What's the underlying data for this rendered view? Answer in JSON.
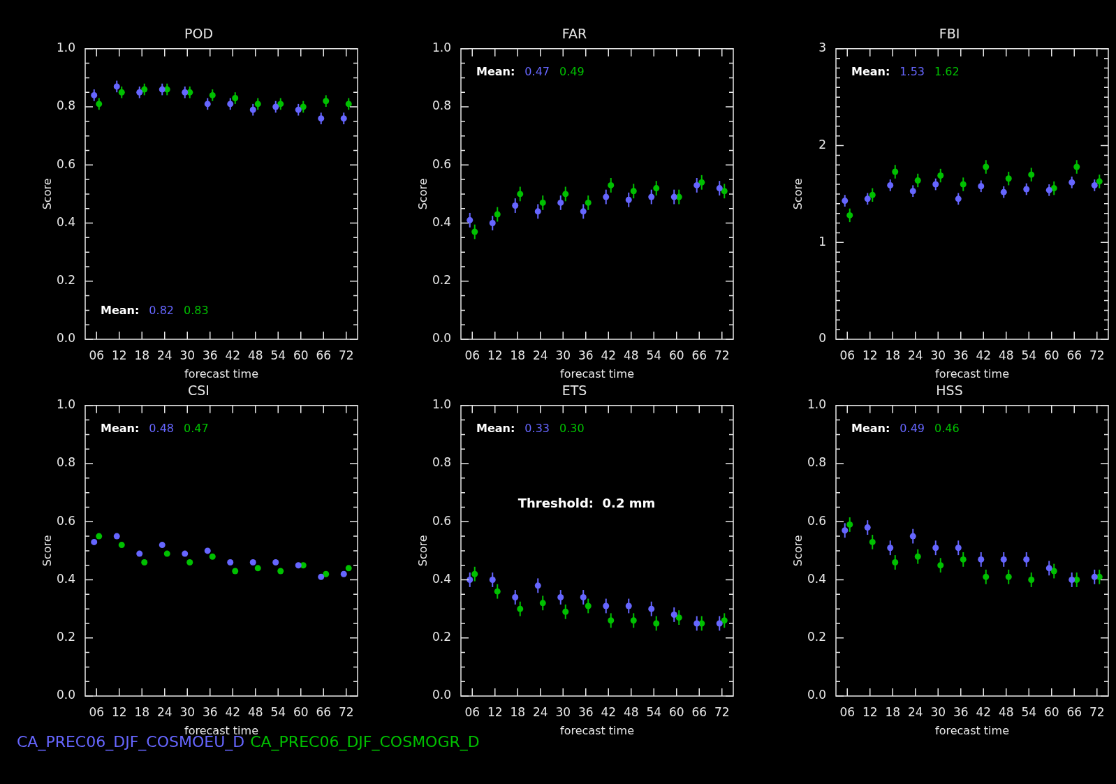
{
  "chart_data": [
    {
      "type": "scatter",
      "title": "POD",
      "xlabel": "forecast time",
      "ylabel": "Score",
      "marker": "circle",
      "categories": [
        "06",
        "12",
        "18",
        "24",
        "30",
        "36",
        "42",
        "48",
        "54",
        "60",
        "66",
        "72"
      ],
      "series": [
        {
          "color": "#6666ff",
          "values": [
            0.84,
            0.87,
            0.85,
            0.86,
            0.85,
            0.81,
            0.81,
            0.79,
            0.8,
            0.79,
            0.76,
            0.76
          ],
          "errors": [
            0.02,
            0.02,
            0.02,
            0.02,
            0.02,
            0.02,
            0.02,
            0.02,
            0.02,
            0.02,
            0.02,
            0.02
          ]
        },
        {
          "color": "#00c000",
          "values": [
            0.81,
            0.85,
            0.86,
            0.86,
            0.85,
            0.84,
            0.83,
            0.81,
            0.81,
            0.8,
            0.82,
            0.81
          ],
          "errors": [
            0.02,
            0.02,
            0.02,
            0.02,
            0.02,
            0.02,
            0.02,
            0.02,
            0.02,
            0.02,
            0.02,
            0.02
          ]
        }
      ],
      "ylim": [
        0,
        1
      ],
      "yticks": [
        {
          "value": 0,
          "label": "0.0"
        },
        {
          "value": 0.05,
          "label": null
        },
        {
          "value": 0.1,
          "label": null
        },
        {
          "value": 0.15,
          "label": null
        },
        0.2,
        {
          "value": 0.25,
          "label": null
        },
        {
          "value": 0.3,
          "label": null
        },
        {
          "value": 0.35,
          "label": null
        },
        0.4,
        {
          "value": 0.45,
          "label": null
        },
        {
          "value": 0.5,
          "label": null
        },
        {
          "value": 0.55,
          "label": null
        },
        0.6,
        {
          "value": 0.65,
          "label": null
        },
        {
          "value": 0.7,
          "label": null
        },
        {
          "value": 0.75,
          "label": null
        },
        0.8,
        {
          "value": 0.85,
          "label": null
        },
        {
          "value": 0.9,
          "label": null
        },
        {
          "value": 0.95,
          "label": null
        },
        {
          "value": 1,
          "label": "1.0"
        }
      ],
      "annotations": [
        "Mean:",
        "0.82",
        "0.83"
      ]
    },
    {
      "type": "scatter",
      "title": "FAR",
      "xlabel": "forecast time",
      "ylabel": "Score",
      "marker": "circle",
      "categories": [
        "06",
        "12",
        "18",
        "24",
        "30",
        "36",
        "42",
        "48",
        "54",
        "60",
        "66",
        "72"
      ],
      "series": [
        {
          "color": "#6666ff",
          "values": [
            0.41,
            0.4,
            0.46,
            0.44,
            0.47,
            0.44,
            0.49,
            0.48,
            0.49,
            0.49,
            0.53,
            0.52
          ],
          "errors": [
            0.025,
            0.025,
            0.025,
            0.025,
            0.025,
            0.025,
            0.025,
            0.025,
            0.025,
            0.025,
            0.025,
            0.025
          ]
        },
        {
          "color": "#00c000",
          "values": [
            0.37,
            0.43,
            0.5,
            0.47,
            0.5,
            0.47,
            0.53,
            0.51,
            0.52,
            0.49,
            0.54,
            0.51
          ],
          "errors": [
            0.025,
            0.025,
            0.025,
            0.025,
            0.025,
            0.025,
            0.025,
            0.025,
            0.025,
            0.025,
            0.025,
            0.025
          ]
        }
      ],
      "ylim": [
        0,
        1
      ],
      "yticks": [
        {
          "value": 0,
          "label": "0.0"
        },
        {
          "value": 0.05,
          "label": null
        },
        {
          "value": 0.1,
          "label": null
        },
        {
          "value": 0.15,
          "label": null
        },
        0.2,
        {
          "value": 0.25,
          "label": null
        },
        {
          "value": 0.3,
          "label": null
        },
        {
          "value": 0.35,
          "label": null
        },
        0.4,
        {
          "value": 0.45,
          "label": null
        },
        {
          "value": 0.5,
          "label": null
        },
        {
          "value": 0.55,
          "label": null
        },
        0.6,
        {
          "value": 0.65,
          "label": null
        },
        {
          "value": 0.7,
          "label": null
        },
        {
          "value": 0.75,
          "label": null
        },
        0.8,
        {
          "value": 0.85,
          "label": null
        },
        {
          "value": 0.9,
          "label": null
        },
        {
          "value": 0.95,
          "label": null
        },
        {
          "value": 1,
          "label": "1.0"
        }
      ],
      "annotations": [
        "Mean:",
        "0.47",
        "0.49"
      ]
    },
    {
      "type": "scatter",
      "title": "FBI",
      "xlabel": "forecast time",
      "ylabel": "Score",
      "marker": "circle",
      "categories": [
        "06",
        "12",
        "18",
        "24",
        "30",
        "36",
        "42",
        "48",
        "54",
        "60",
        "66",
        "72"
      ],
      "series": [
        {
          "color": "#6666ff",
          "values": [
            1.43,
            1.45,
            1.59,
            1.53,
            1.6,
            1.45,
            1.58,
            1.52,
            1.55,
            1.54,
            1.62,
            1.59
          ],
          "errors": [
            0.06,
            0.06,
            0.06,
            0.06,
            0.06,
            0.06,
            0.06,
            0.06,
            0.06,
            0.06,
            0.06,
            0.06
          ]
        },
        {
          "color": "#00c000",
          "values": [
            1.28,
            1.49,
            1.73,
            1.64,
            1.69,
            1.6,
            1.78,
            1.66,
            1.7,
            1.56,
            1.78,
            1.63
          ],
          "errors": [
            0.07,
            0.07,
            0.07,
            0.07,
            0.07,
            0.07,
            0.07,
            0.07,
            0.07,
            0.07,
            0.07,
            0.07
          ]
        }
      ],
      "ylim": [
        0,
        3
      ],
      "yticks": [
        0,
        {
          "value": 0.1,
          "label": null
        },
        {
          "value": 0.2,
          "label": null
        },
        {
          "value": 0.3,
          "label": null
        },
        {
          "value": 0.4,
          "label": null
        },
        {
          "value": 0.5,
          "label": null
        },
        {
          "value": 0.6,
          "label": null
        },
        {
          "value": 0.7,
          "label": null
        },
        {
          "value": 0.8,
          "label": null
        },
        {
          "value": 0.9,
          "label": null
        },
        1,
        {
          "value": 1.1,
          "label": null
        },
        {
          "value": 1.2,
          "label": null
        },
        {
          "value": 1.3,
          "label": null
        },
        {
          "value": 1.4,
          "label": null
        },
        {
          "value": 1.5,
          "label": null
        },
        {
          "value": 1.6,
          "label": null
        },
        {
          "value": 1.7,
          "label": null
        },
        {
          "value": 1.8,
          "label": null
        },
        {
          "value": 1.9,
          "label": null
        },
        2,
        {
          "value": 2.1,
          "label": null
        },
        {
          "value": 2.2,
          "label": null
        },
        {
          "value": 2.3,
          "label": null
        },
        {
          "value": 2.4,
          "label": null
        },
        {
          "value": 2.5,
          "label": null
        },
        {
          "value": 2.6,
          "label": null
        },
        {
          "value": 2.7,
          "label": null
        },
        {
          "value": 2.8,
          "label": null
        },
        {
          "value": 2.9,
          "label": null
        },
        3
      ],
      "annotations": [
        "Mean:",
        "1.53",
        "1.62"
      ]
    },
    {
      "type": "scatter",
      "title": "CSI",
      "xlabel": "forecast time",
      "ylabel": "Score",
      "marker": "circle",
      "legend": "bottom",
      "categories": [
        "06",
        "12",
        "18",
        "24",
        "30",
        "36",
        "42",
        "48",
        "54",
        "60",
        "66",
        "72"
      ],
      "series": [
        {
          "name": "CA_PREC06_DJF_COSMOEU_D",
          "color": "#6666ff",
          "values": [
            0.53,
            0.55,
            0.49,
            0.52,
            0.49,
            0.5,
            0.46,
            0.46,
            0.46,
            0.45,
            0.41,
            0.42
          ]
        },
        {
          "name": "CA_PREC06_DJF_COSMOGR_D",
          "color": "#00c000",
          "values": [
            0.55,
            0.52,
            0.46,
            0.49,
            0.46,
            0.48,
            0.43,
            0.44,
            0.43,
            0.45,
            0.42,
            0.44
          ]
        }
      ],
      "ylim": [
        0,
        1
      ],
      "yticks": [
        {
          "value": 0,
          "label": "0.0"
        },
        {
          "value": 0.05,
          "label": null
        },
        {
          "value": 0.1,
          "label": null
        },
        {
          "value": 0.15,
          "label": null
        },
        0.2,
        {
          "value": 0.25,
          "label": null
        },
        {
          "value": 0.3,
          "label": null
        },
        {
          "value": 0.35,
          "label": null
        },
        0.4,
        {
          "value": 0.45,
          "label": null
        },
        {
          "value": 0.5,
          "label": null
        },
        {
          "value": 0.55,
          "label": null
        },
        0.6,
        {
          "value": 0.65,
          "label": null
        },
        {
          "value": 0.7,
          "label": null
        },
        {
          "value": 0.75,
          "label": null
        },
        0.8,
        {
          "value": 0.85,
          "label": null
        },
        {
          "value": 0.9,
          "label": null
        },
        {
          "value": 0.95,
          "label": null
        },
        {
          "value": 1,
          "label": "1.0"
        }
      ],
      "annotations": [
        "Mean:",
        "0.48",
        "0.47"
      ]
    },
    {
      "type": "scatter",
      "title": "ETS",
      "xlabel": "forecast time",
      "ylabel": "Score",
      "marker": "circle",
      "categories": [
        "06",
        "12",
        "18",
        "24",
        "30",
        "36",
        "42",
        "48",
        "54",
        "60",
        "66",
        "72"
      ],
      "series": [
        {
          "color": "#6666ff",
          "values": [
            0.4,
            0.4,
            0.34,
            0.38,
            0.34,
            0.34,
            0.31,
            0.31,
            0.3,
            0.28,
            0.25,
            0.25
          ],
          "errors": [
            0.025,
            0.025,
            0.025,
            0.025,
            0.025,
            0.025,
            0.025,
            0.025,
            0.025,
            0.025,
            0.025,
            0.025
          ]
        },
        {
          "color": "#00c000",
          "values": [
            0.42,
            0.36,
            0.3,
            0.32,
            0.29,
            0.31,
            0.26,
            0.26,
            0.25,
            0.27,
            0.25,
            0.26
          ],
          "errors": [
            0.025,
            0.025,
            0.025,
            0.025,
            0.025,
            0.025,
            0.025,
            0.025,
            0.025,
            0.025,
            0.025,
            0.025
          ]
        }
      ],
      "ylim": [
        0,
        1
      ],
      "yticks": [
        {
          "value": 0,
          "label": "0.0"
        },
        {
          "value": 0.05,
          "label": null
        },
        {
          "value": 0.1,
          "label": null
        },
        {
          "value": 0.15,
          "label": null
        },
        0.2,
        {
          "value": 0.25,
          "label": null
        },
        {
          "value": 0.3,
          "label": null
        },
        {
          "value": 0.35,
          "label": null
        },
        0.4,
        {
          "value": 0.45,
          "label": null
        },
        {
          "value": 0.5,
          "label": null
        },
        {
          "value": 0.55,
          "label": null
        },
        0.6,
        {
          "value": 0.65,
          "label": null
        },
        {
          "value": 0.7,
          "label": null
        },
        {
          "value": 0.75,
          "label": null
        },
        0.8,
        {
          "value": 0.85,
          "label": null
        },
        {
          "value": 0.9,
          "label": null
        },
        {
          "value": 0.95,
          "label": null
        },
        {
          "value": 1,
          "label": "1.0"
        }
      ],
      "annotations": [
        "Mean:",
        "0.33",
        "0.30",
        "Threshold:  0.2 mm"
      ]
    },
    {
      "type": "scatter",
      "title": "HSS",
      "xlabel": "forecast time",
      "ylabel": "Score",
      "marker": "circle",
      "categories": [
        "06",
        "12",
        "18",
        "24",
        "30",
        "36",
        "42",
        "48",
        "54",
        "60",
        "66",
        "72"
      ],
      "series": [
        {
          "color": "#6666ff",
          "values": [
            0.57,
            0.58,
            0.51,
            0.55,
            0.51,
            0.51,
            0.47,
            0.47,
            0.47,
            0.44,
            0.4,
            0.41
          ],
          "errors": [
            0.025,
            0.025,
            0.025,
            0.025,
            0.025,
            0.025,
            0.025,
            0.025,
            0.025,
            0.025,
            0.025,
            0.025
          ]
        },
        {
          "color": "#00c000",
          "values": [
            0.59,
            0.53,
            0.46,
            0.48,
            0.45,
            0.47,
            0.41,
            0.41,
            0.4,
            0.43,
            0.4,
            0.41
          ],
          "errors": [
            0.025,
            0.025,
            0.025,
            0.025,
            0.025,
            0.025,
            0.025,
            0.025,
            0.025,
            0.025,
            0.025,
            0.025
          ]
        }
      ],
      "ylim": [
        0,
        1
      ],
      "yticks": [
        {
          "value": 0,
          "label": "0.0"
        },
        {
          "value": 0.05,
          "label": null
        },
        {
          "value": 0.1,
          "label": null
        },
        {
          "value": 0.15,
          "label": null
        },
        0.2,
        {
          "value": 0.25,
          "label": null
        },
        {
          "value": 0.3,
          "label": null
        },
        {
          "value": 0.35,
          "label": null
        },
        0.4,
        {
          "value": 0.45,
          "label": null
        },
        {
          "value": 0.5,
          "label": null
        },
        {
          "value": 0.55,
          "label": null
        },
        0.6,
        {
          "value": 0.65,
          "label": null
        },
        {
          "value": 0.7,
          "label": null
        },
        {
          "value": 0.75,
          "label": null
        },
        0.8,
        {
          "value": 0.85,
          "label": null
        },
        {
          "value": 0.9,
          "label": null
        },
        {
          "value": 0.95,
          "label": null
        },
        {
          "value": 1,
          "label": "1.0"
        }
      ],
      "annotations": [
        "Mean:",
        "0.49",
        "0.46"
      ]
    }
  ]
}
